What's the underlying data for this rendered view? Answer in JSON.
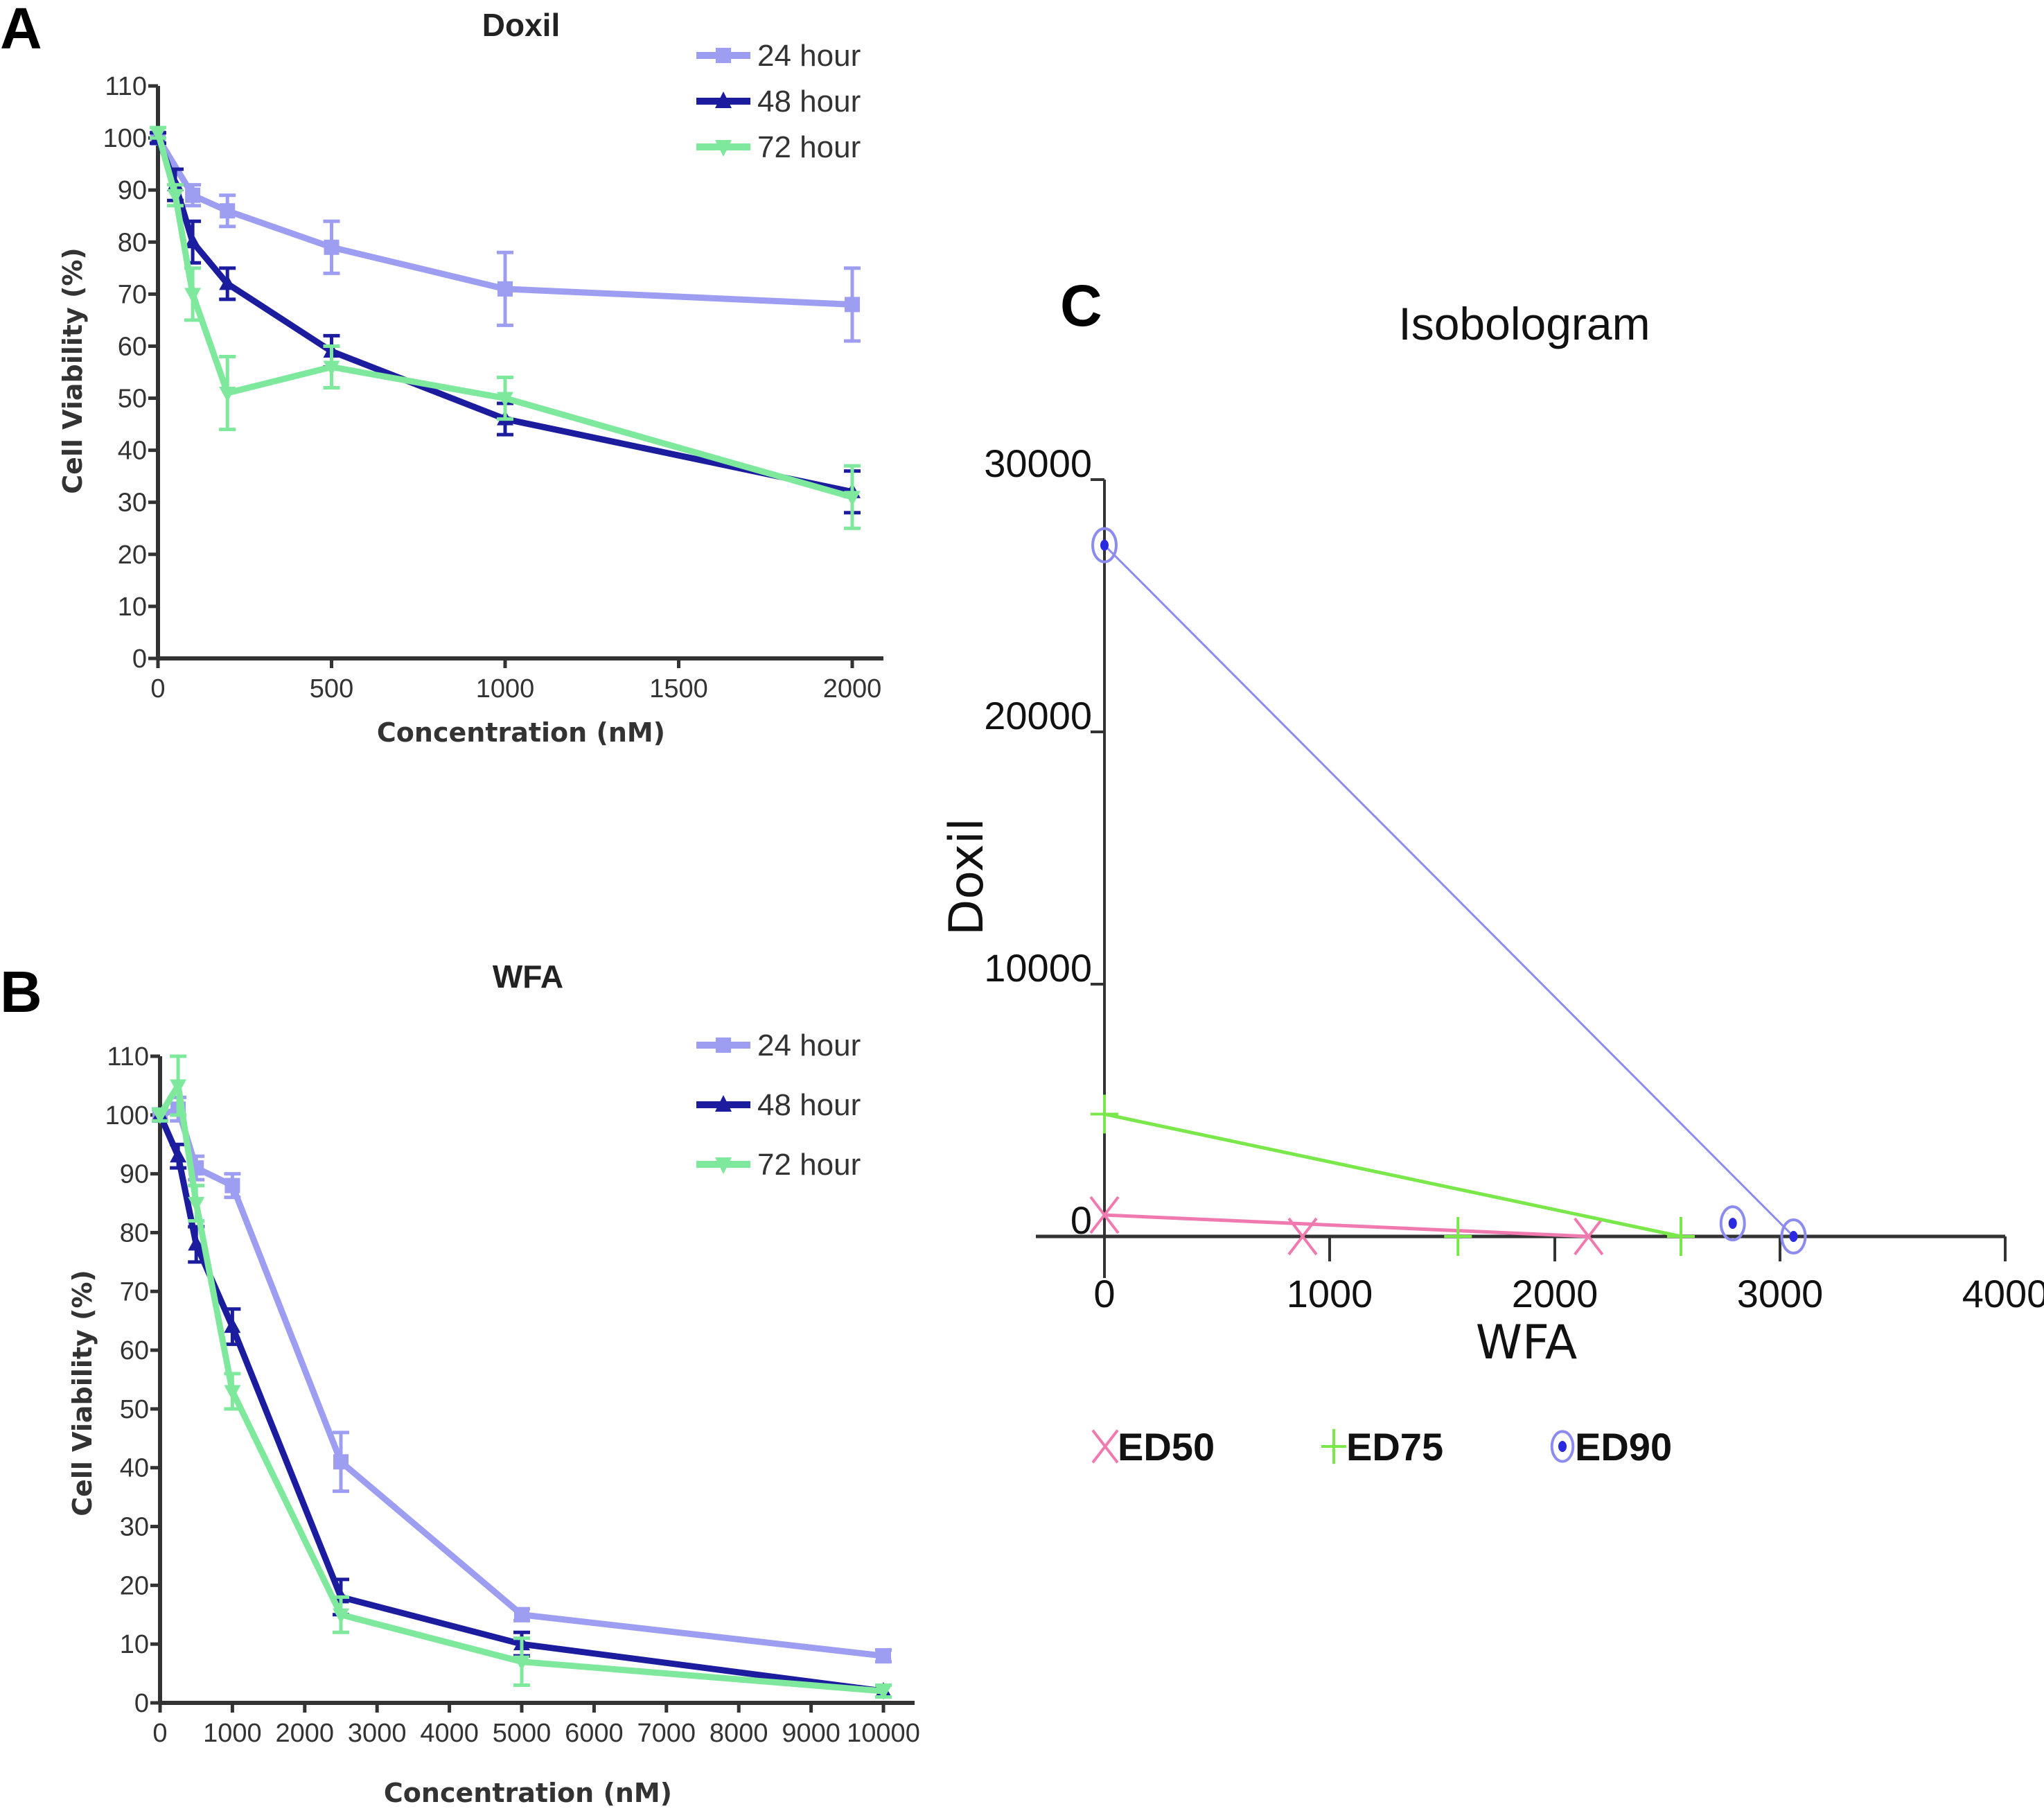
{
  "chart_data": [
    {
      "panel": "A",
      "type": "line",
      "title": "Doxil",
      "xlabel": "Concentration (nM)",
      "ylabel": "Cell Viability (%)",
      "xlim": [
        0,
        2000
      ],
      "ylim": [
        0,
        110
      ],
      "xticks": [
        0,
        500,
        1000,
        1500,
        2000
      ],
      "yticks": [
        0,
        10,
        20,
        30,
        40,
        50,
        60,
        70,
        80,
        90,
        100,
        110
      ],
      "grid": false,
      "legend": "top-right",
      "series": [
        {
          "name": "24 hour",
          "color": "#9d9df2",
          "marker": "square",
          "x": [
            0,
            100,
            200,
            500,
            1000,
            2000
          ],
          "y": [
            100,
            89,
            86,
            79,
            71,
            68
          ],
          "err": [
            1,
            2,
            3,
            5,
            7,
            7
          ]
        },
        {
          "name": "48 hour",
          "color": "#1c1c9e",
          "marker": "triangle",
          "x": [
            0,
            50,
            100,
            200,
            500,
            1000,
            2000
          ],
          "y": [
            100,
            91,
            80,
            72,
            59,
            46,
            32
          ],
          "err": [
            1,
            3,
            4,
            3,
            3,
            3,
            4
          ]
        },
        {
          "name": "72 hour",
          "color": "#7ee99c",
          "marker": "triangle-down",
          "x": [
            0,
            50,
            100,
            200,
            500,
            1000,
            2000
          ],
          "y": [
            101,
            89,
            70,
            51,
            56,
            50,
            31
          ],
          "err": [
            1,
            2,
            5,
            7,
            4,
            4,
            6
          ]
        }
      ]
    },
    {
      "panel": "B",
      "type": "line",
      "title": "WFA",
      "xlabel": "Concentration (nM)",
      "ylabel": "Cell Viability (%)",
      "xlim": [
        0,
        10000
      ],
      "ylim": [
        0,
        110
      ],
      "xticks": [
        0,
        1000,
        2000,
        3000,
        4000,
        5000,
        6000,
        7000,
        8000,
        9000,
        10000
      ],
      "yticks": [
        0,
        10,
        20,
        30,
        40,
        50,
        60,
        70,
        80,
        90,
        100,
        110
      ],
      "grid": false,
      "legend": "top-right",
      "series": [
        {
          "name": "24 hour",
          "color": "#9d9df2",
          "marker": "square",
          "x": [
            0,
            250,
            500,
            1000,
            2500,
            5000,
            10000
          ],
          "y": [
            100,
            101,
            91,
            88,
            41,
            15,
            8
          ],
          "err": [
            1,
            2,
            2,
            2,
            5,
            1,
            1
          ]
        },
        {
          "name": "48 hour",
          "color": "#1c1c9e",
          "marker": "triangle",
          "x": [
            0,
            250,
            500,
            1000,
            2500,
            5000,
            10000
          ],
          "y": [
            100,
            93,
            78,
            64,
            18,
            10,
            2
          ],
          "err": [
            1,
            2,
            3,
            3,
            3,
            2,
            1
          ]
        },
        {
          "name": "72 hour",
          "color": "#7ee99c",
          "marker": "triangle-down",
          "x": [
            0,
            250,
            500,
            1000,
            2500,
            5000,
            10000
          ],
          "y": [
            100,
            105,
            85,
            53,
            15,
            7,
            2
          ],
          "err": [
            1,
            5,
            3,
            3,
            3,
            4,
            1
          ]
        }
      ]
    },
    {
      "panel": "C",
      "type": "line",
      "title": "Isobologram",
      "xlabel": "WFA",
      "ylabel": "Doxil",
      "xlim": [
        0,
        4000
      ],
      "ylim": [
        0,
        30000
      ],
      "xticks": [
        0,
        1000,
        2000,
        3000,
        4000
      ],
      "yticks": [
        0,
        10000,
        20000,
        30000
      ],
      "grid": false,
      "legend": "bottom",
      "series": [
        {
          "name": "ED50",
          "color": "#f07ab0",
          "marker": "x",
          "line": {
            "x": [
              0,
              2150
            ],
            "y": [
              850,
              0
            ]
          },
          "combination": {
            "x": 880,
            "y": 0
          }
        },
        {
          "name": "ED75",
          "color": "#7ae84a",
          "marker": "plus",
          "line": {
            "x": [
              0,
              2560
            ],
            "y": [
              4850,
              0
            ]
          },
          "combination": {
            "x": 1570,
            "y": 0
          }
        },
        {
          "name": "ED90",
          "color": "#8c8cf0",
          "marker": "circle-dot",
          "line": {
            "x": [
              0,
              3060
            ],
            "y": [
              27400,
              0
            ]
          },
          "combination": {
            "x": 2790,
            "y": 520
          }
        }
      ]
    }
  ],
  "panels": {
    "A": {
      "label": "A",
      "title": "Doxil",
      "xlabel": "Concentration (nM)",
      "ylabel": "Cell Viability (%)"
    },
    "B": {
      "label": "B",
      "title": "WFA",
      "xlabel": "Concentration (nM)",
      "ylabel": "Cell Viability (%)"
    },
    "C": {
      "label": "C",
      "title": "Isobologram",
      "xlabel": "WFA",
      "ylabel": "Doxil"
    }
  }
}
